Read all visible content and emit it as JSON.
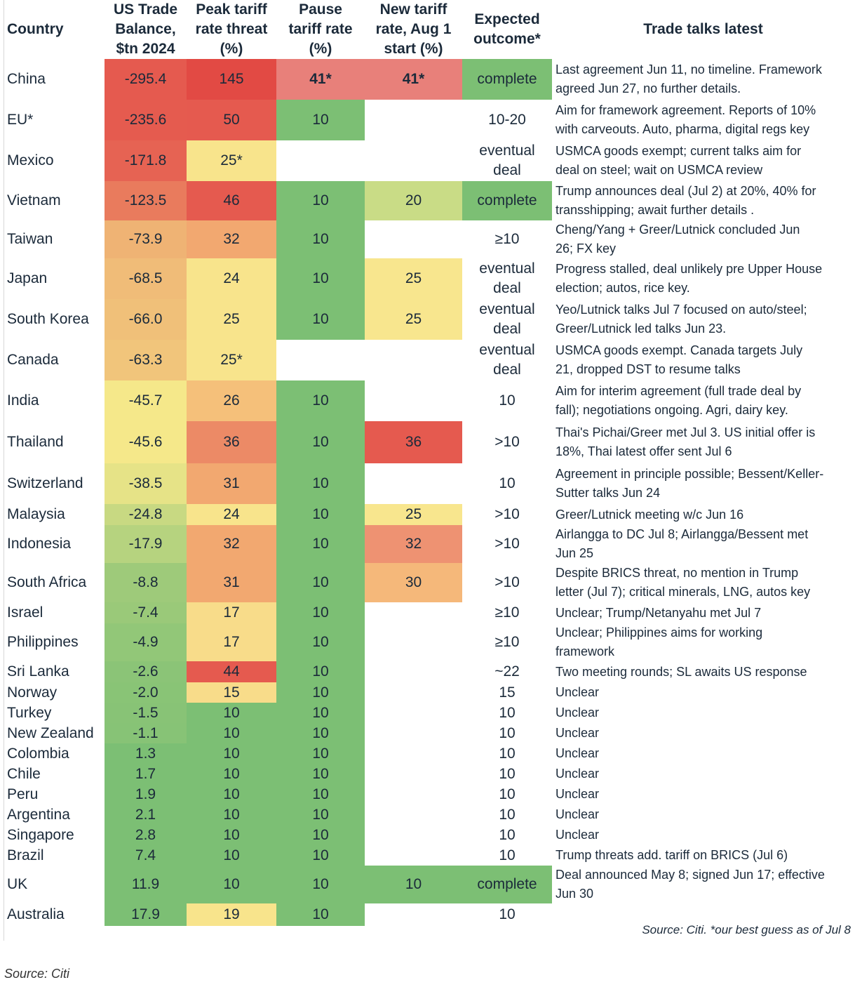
{
  "chart_data": {
    "type": "table",
    "title": "",
    "columns": [
      "Country",
      "US Trade Balance, $tn 2024",
      "Peak tariff rate threat (%)",
      "Pause tariff rate (%)",
      "New tariff rate, Aug 1 start (%)",
      "Expected outcome*",
      "Trade talks latest"
    ],
    "headers": {
      "country": [
        "Country"
      ],
      "balance": [
        "US Trade",
        "Balance,",
        "$tn 2024"
      ],
      "peak": [
        "Peak tariff",
        "rate threat",
        "(%)"
      ],
      "pause": [
        "Pause",
        "tariff rate",
        "(%)"
      ],
      "newrate": [
        "New tariff",
        "rate, Aug 1",
        "start (%)"
      ],
      "outcome": [
        "Expected",
        "outcome*"
      ],
      "talks": [
        "Trade talks latest"
      ]
    },
    "rows": [
      {
        "country": "China",
        "balance": "-295.4",
        "peak": "145",
        "pause": "41*",
        "newrate": "41*",
        "outcome": [
          "complete"
        ],
        "talks": [
          "Last agreement Jun 11, no timeline. Framework",
          "agreed Jun 27, no further details."
        ]
      },
      {
        "country": "EU*",
        "balance": "-235.6",
        "peak": "50",
        "pause": "10",
        "newrate": "",
        "outcome": [
          "10-20"
        ],
        "talks": [
          "Aim for framework agreement. Reports of 10%",
          "with carveouts. Auto, pharma, digital regs key"
        ]
      },
      {
        "country": "Mexico",
        "balance": "-171.8",
        "peak": "25*",
        "pause": "",
        "newrate": "",
        "outcome": [
          "eventual",
          "deal"
        ],
        "talks": [
          "USMCA goods exempt; current talks aim for",
          "deal on steel; wait on USMCA review"
        ]
      },
      {
        "country": "Vietnam",
        "balance": "-123.5",
        "peak": "46",
        "pause": "10",
        "newrate": "20",
        "outcome": [
          "complete"
        ],
        "talks": [
          "Trump announces deal (Jul 2) at 20%, 40% for",
          "transshipping; await further details ."
        ]
      },
      {
        "country": "Taiwan",
        "balance": "-73.9",
        "peak": "32",
        "pause": "10",
        "newrate": "",
        "outcome": [
          "≥10"
        ],
        "talks": [
          "Cheng/Yang + Greer/Lutnick concluded Jun",
          "26; FX key"
        ]
      },
      {
        "country": "Japan",
        "balance": "-68.5",
        "peak": "24",
        "pause": "10",
        "newrate": "25",
        "outcome": [
          "eventual",
          "deal"
        ],
        "talks": [
          "Progress stalled, deal unlikely pre Upper House",
          "election; autos, rice key."
        ]
      },
      {
        "country": "South Korea",
        "balance": "-66.0",
        "peak": "25",
        "pause": "10",
        "newrate": "25",
        "outcome": [
          "eventual",
          "deal"
        ],
        "talks": [
          "Yeo/Lutnick talks Jul 7 focused on auto/steel;",
          "Greer/Lutnick led talks Jun 23."
        ]
      },
      {
        "country": "Canada",
        "balance": "-63.3",
        "peak": "25*",
        "pause": "",
        "newrate": "",
        "outcome": [
          "eventual",
          "deal"
        ],
        "talks": [
          "USMCA goods exempt. Canada targets July",
          "21, dropped DST to resume talks"
        ]
      },
      {
        "country": "India",
        "balance": "-45.7",
        "peak": "26",
        "pause": "10",
        "newrate": "",
        "outcome": [
          "10"
        ],
        "talks": [
          "Aim for interim agreement (full trade deal by",
          "fall); negotiations ongoing. Agri, dairy key."
        ]
      },
      {
        "country": "Thailand",
        "balance": "-45.6",
        "peak": "36",
        "pause": "10",
        "newrate": "36",
        "outcome": [
          ">10"
        ],
        "talks": [
          "Thai's Pichai/Greer met Jul 3. US initial offer is",
          "18%, Thai latest offer sent Jul 6"
        ]
      },
      {
        "country": "Switzerland",
        "balance": "-38.5",
        "peak": "31",
        "pause": "10",
        "newrate": "",
        "outcome": [
          "10"
        ],
        "talks": [
          "Agreement in principle possible; Bessent/Keller-",
          "Sutter talks Jun 24"
        ]
      },
      {
        "country": "Malaysia",
        "balance": "-24.8",
        "peak": "24",
        "pause": "10",
        "newrate": "25",
        "outcome": [
          ">10"
        ],
        "talks": [
          "Greer/Lutnick meeting w/c Jun 16"
        ]
      },
      {
        "country": "Indonesia",
        "balance": "-17.9",
        "peak": "32",
        "pause": "10",
        "newrate": "32",
        "outcome": [
          ">10"
        ],
        "talks": [
          "Airlangga to DC Jul 8; Airlangga/Bessent met",
          "Jun 25"
        ]
      },
      {
        "country": "South Africa",
        "balance": "-8.8",
        "peak": "31",
        "pause": "10",
        "newrate": "30",
        "outcome": [
          ">10"
        ],
        "talks": [
          "Despite BRICS threat, no mention in Trump",
          "letter (Jul 7); critical minerals, LNG, autos key"
        ]
      },
      {
        "country": "Israel",
        "balance": "-7.4",
        "peak": "17",
        "pause": "10",
        "newrate": "",
        "outcome": [
          "≥10"
        ],
        "talks": [
          "Unclear; Trump/Netanyahu met Jul 7"
        ]
      },
      {
        "country": "Philippines",
        "balance": "-4.9",
        "peak": "17",
        "pause": "10",
        "newrate": "",
        "outcome": [
          "≥10"
        ],
        "talks": [
          "Unclear; Philippines aims for working",
          "framework"
        ]
      },
      {
        "country": "Sri Lanka",
        "balance": "-2.6",
        "peak": "44",
        "pause": "10",
        "newrate": "",
        "outcome": [
          "~22"
        ],
        "talks": [
          "Two meeting rounds; SL awaits US response"
        ]
      },
      {
        "country": "Norway",
        "balance": "-2.0",
        "peak": "15",
        "pause": "10",
        "newrate": "",
        "outcome": [
          "15"
        ],
        "talks": [
          "Unclear"
        ]
      },
      {
        "country": "Turkey",
        "balance": "-1.5",
        "peak": "10",
        "pause": "10",
        "newrate": "",
        "outcome": [
          "10"
        ],
        "talks": [
          "Unclear"
        ]
      },
      {
        "country": "New Zealand",
        "balance": "-1.1",
        "peak": "10",
        "pause": "10",
        "newrate": "",
        "outcome": [
          "10"
        ],
        "talks": [
          "Unclear"
        ]
      },
      {
        "country": "Colombia",
        "balance": "1.3",
        "peak": "10",
        "pause": "10",
        "newrate": "",
        "outcome": [
          "10"
        ],
        "talks": [
          "Unclear"
        ]
      },
      {
        "country": "Chile",
        "balance": "1.7",
        "peak": "10",
        "pause": "10",
        "newrate": "",
        "outcome": [
          "10"
        ],
        "talks": [
          "Unclear"
        ]
      },
      {
        "country": "Peru",
        "balance": "1.9",
        "peak": "10",
        "pause": "10",
        "newrate": "",
        "outcome": [
          "10"
        ],
        "talks": [
          "Unclear"
        ]
      },
      {
        "country": "Argentina",
        "balance": "2.1",
        "peak": "10",
        "pause": "10",
        "newrate": "",
        "outcome": [
          "10"
        ],
        "talks": [
          "Unclear"
        ]
      },
      {
        "country": "Singapore",
        "balance": "2.8",
        "peak": "10",
        "pause": "10",
        "newrate": "",
        "outcome": [
          "10"
        ],
        "talks": [
          "Unclear"
        ]
      },
      {
        "country": "Brazil",
        "balance": "7.4",
        "peak": "10",
        "pause": "10",
        "newrate": "",
        "outcome": [
          "10"
        ],
        "talks": [
          "Trump threats add. tariff on BRICS (Jul 6)"
        ]
      },
      {
        "country": "UK",
        "balance": "11.9",
        "peak": "10",
        "pause": "10",
        "newrate": "10",
        "outcome": [
          "complete"
        ],
        "talks": [
          "Deal announced May 8; signed Jun 17; effective",
          "Jun 30"
        ]
      },
      {
        "country": "Australia",
        "balance": "17.9",
        "peak": "19",
        "pause": "10",
        "newrate": "",
        "outcome": [
          "10"
        ],
        "talks": [
          ""
        ]
      }
    ],
    "color_scale": {
      "low": "#e55a4f",
      "mid": "#f5e88a",
      "high": "#7cbf74"
    },
    "footnote": "Source: Citi. *our best guess as of Jul 8"
  },
  "source": "Source: Citi"
}
